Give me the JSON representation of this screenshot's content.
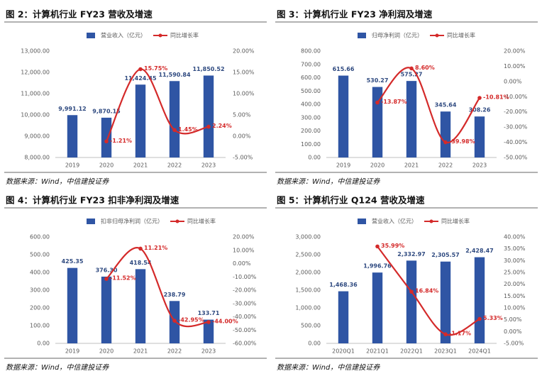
{
  "chart_data": [
    {
      "type": "bar-line",
      "title": "图 2：计算机行业 FY23 营收及增速",
      "source": "数据来源：Wind，中信建投证券",
      "legend": "top",
      "categories": [
        "2019",
        "2020",
        "2021",
        "2022",
        "2023"
      ],
      "series": [
        {
          "name": "营业收入（亿元）",
          "color": "#2f55a4",
          "values": [
            9991.12,
            9870.15,
            11424.45,
            11590.84,
            11850.52
          ],
          "value_labels": [
            "9,991.12",
            "9,870.15",
            "11,424.45",
            "11,590.84",
            "11,850.52"
          ]
        },
        {
          "name": "同比增长率",
          "color": "#d42a2a",
          "axis": "y2",
          "values": [
            null,
            -1.21,
            15.75,
            1.45,
            2.24
          ],
          "value_labels": [
            null,
            "-1.21%",
            "15.75%",
            "1.45%",
            "2.24%"
          ]
        }
      ],
      "ylim": [
        8000,
        13000
      ],
      "yticks": [
        {
          "value": 8000,
          "label": "8,000.00"
        },
        {
          "value": 9000,
          "label": "9,000.00"
        },
        {
          "value": 10000,
          "label": "10,000.00"
        },
        {
          "value": 11000,
          "label": "11,000.00"
        },
        {
          "value": 12000,
          "label": "12,000.00"
        },
        {
          "value": 13000,
          "label": "13,000.00"
        }
      ],
      "y2lim": [
        -5,
        20
      ],
      "y2ticks": [
        {
          "value": -5,
          "label": "-5.00%"
        },
        {
          "value": 0,
          "label": "0.00%"
        },
        {
          "value": 5,
          "label": "5.00%"
        },
        {
          "value": 10,
          "label": "10.00%"
        },
        {
          "value": 15,
          "label": "15.00%"
        },
        {
          "value": 20,
          "label": "20.00%"
        }
      ]
    },
    {
      "type": "bar-line",
      "title": "图 3：计算机行业 FY23 净利润及增速",
      "source": "数据来源：Wind，中信建投证券",
      "legend": "top",
      "categories": [
        "2019",
        "2020",
        "2021",
        "2022",
        "2023"
      ],
      "series": [
        {
          "name": "归母净利润（亿元）",
          "color": "#2f55a4",
          "values": [
            615.66,
            530.27,
            575.27,
            345.64,
            308.26
          ],
          "value_labels": [
            "615.66",
            "530.27",
            "575.27",
            "345.64",
            "308.26"
          ]
        },
        {
          "name": "同比增长率",
          "color": "#d42a2a",
          "axis": "y2",
          "values": [
            null,
            -13.87,
            8.6,
            -39.98,
            -10.81
          ],
          "value_labels": [
            null,
            "-13.87%",
            "8.60%",
            "-39.98%",
            "-10.81%"
          ]
        }
      ],
      "ylim": [
        0,
        800
      ],
      "yticks": [
        {
          "value": 0,
          "label": "0.00"
        },
        {
          "value": 100,
          "label": "100.00"
        },
        {
          "value": 200,
          "label": "200.00"
        },
        {
          "value": 300,
          "label": "300.00"
        },
        {
          "value": 400,
          "label": "400.00"
        },
        {
          "value": 500,
          "label": "500.00"
        },
        {
          "value": 600,
          "label": "600.00"
        },
        {
          "value": 700,
          "label": "700.00"
        },
        {
          "value": 800,
          "label": "800.00"
        }
      ],
      "y2lim": [
        -50,
        20
      ],
      "y2ticks": [
        {
          "value": -50,
          "label": "-50.00%"
        },
        {
          "value": -40,
          "label": "-40.00%"
        },
        {
          "value": -30,
          "label": "-30.00%"
        },
        {
          "value": -20,
          "label": "-20.00%"
        },
        {
          "value": -10,
          "label": "-10.00%"
        },
        {
          "value": 0,
          "label": "0.00%"
        },
        {
          "value": 10,
          "label": "10.00%"
        },
        {
          "value": 20,
          "label": "20.00%"
        }
      ]
    },
    {
      "type": "bar-line",
      "title": "图 4：计算机行业 FY23 扣非净利润及增速",
      "source": "数据来源：Wind，中信建投证券",
      "legend": "top",
      "categories": [
        "2019",
        "2020",
        "2021",
        "2022",
        "2023"
      ],
      "series": [
        {
          "name": "扣非归母净利润（亿元）",
          "color": "#2f55a4",
          "values": [
            425.35,
            376.3,
            418.54,
            238.79,
            133.71
          ],
          "value_labels": [
            "425.35",
            "376.30",
            "418.54",
            "238.79",
            "133.71"
          ]
        },
        {
          "name": "同比增长率",
          "color": "#d42a2a",
          "axis": "y2",
          "values": [
            null,
            -11.52,
            11.21,
            -42.95,
            -44.0
          ],
          "value_labels": [
            null,
            "-11.52%",
            "11.21%",
            "-42.95%",
            "-44.00%"
          ]
        }
      ],
      "ylim": [
        0,
        600
      ],
      "yticks": [
        {
          "value": 0,
          "label": "0.00"
        },
        {
          "value": 100,
          "label": "100.00"
        },
        {
          "value": 200,
          "label": "200.00"
        },
        {
          "value": 300,
          "label": "300.00"
        },
        {
          "value": 400,
          "label": "400.00"
        },
        {
          "value": 500,
          "label": "500.00"
        },
        {
          "value": 600,
          "label": "600.00"
        }
      ],
      "y2lim": [
        -60,
        20
      ],
      "y2ticks": [
        {
          "value": -60,
          "label": "-60.00%"
        },
        {
          "value": -50,
          "label": "-50.00%"
        },
        {
          "value": -40,
          "label": "-40.00%"
        },
        {
          "value": -30,
          "label": "-30.00%"
        },
        {
          "value": -20,
          "label": "-20.00%"
        },
        {
          "value": -10,
          "label": "-10.00%"
        },
        {
          "value": 0,
          "label": "0.00%"
        },
        {
          "value": 10,
          "label": "10.00%"
        },
        {
          "value": 20,
          "label": "20.00%"
        }
      ]
    },
    {
      "type": "bar-line",
      "title": "图 5：计算机行业 Q124 营收及增速",
      "source": "数据来源：Wind，中信建投证券",
      "legend": "top",
      "categories": [
        "2020Q1",
        "2021Q1",
        "2022Q1",
        "2023Q1",
        "2024Q1"
      ],
      "series": [
        {
          "name": "营业收入（亿元）",
          "color": "#2f55a4",
          "values": [
            1468.36,
            1996.76,
            2332.97,
            2305.57,
            2428.47
          ],
          "value_labels": [
            "1,468.36",
            "1,996.76",
            "2,332.97",
            "2,305.57",
            "2,428.47"
          ]
        },
        {
          "name": "同比增长率",
          "color": "#d42a2a",
          "axis": "y2",
          "values": [
            null,
            35.99,
            16.84,
            -1.17,
            5.33
          ],
          "value_labels": [
            null,
            "35.99%",
            "16.84%",
            "-1.17%",
            "5.33%"
          ]
        }
      ],
      "ylim": [
        0,
        3000
      ],
      "yticks": [
        {
          "value": 0,
          "label": "0.00"
        },
        {
          "value": 500,
          "label": "500.00"
        },
        {
          "value": 1000,
          "label": "1,000.00"
        },
        {
          "value": 1500,
          "label": "1,500.00"
        },
        {
          "value": 2000,
          "label": "2,000.00"
        },
        {
          "value": 2500,
          "label": "2,500.00"
        },
        {
          "value": 3000,
          "label": "3,000.00"
        }
      ],
      "y2lim": [
        -5,
        40
      ],
      "y2ticks": [
        {
          "value": -5,
          "label": "-5.00%"
        },
        {
          "value": 0,
          "label": "0.00%"
        },
        {
          "value": 5,
          "label": "5.00%"
        },
        {
          "value": 10,
          "label": "10.00%"
        },
        {
          "value": 15,
          "label": "15.00%"
        },
        {
          "value": 20,
          "label": "20.00%"
        },
        {
          "value": 25,
          "label": "25.00%"
        },
        {
          "value": 30,
          "label": "30.00%"
        },
        {
          "value": 35,
          "label": "35.00%"
        },
        {
          "value": 40,
          "label": "40.00%"
        }
      ]
    }
  ]
}
